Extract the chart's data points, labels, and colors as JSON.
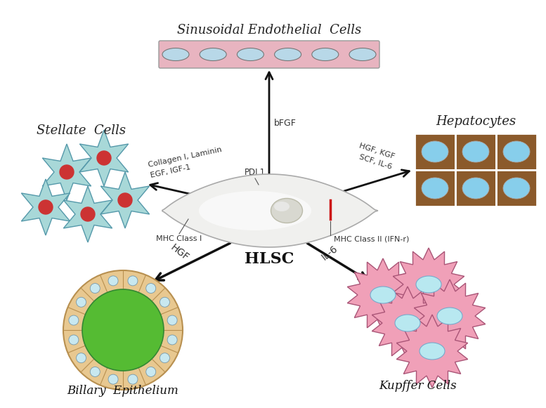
{
  "background_color": "#ffffff",
  "title_sinusoidal": "Sinusoidal Endothelial  Cells",
  "title_stellate": "Stellate  Cells",
  "title_hepatocytes": "Hepatocytes",
  "title_billary": "Billary  Epithelium",
  "title_kupffer": "Kupffer Cells",
  "title_hlsc": "HLSC",
  "label_bFGF": "bFGF",
  "label_HGF_KGF": "HGF, KGF",
  "label_SCF_IL6": "SCF, IL-6",
  "label_collagen": "Collagen I, Laminin",
  "label_EGF": "EGF, IGF-1",
  "label_PDL1": "PDL1",
  "label_MHC1": "MHC Class I",
  "label_MHC2": "MHC Class II (IFN-r)",
  "label_HGF_bottom": "HGF",
  "label_IL6_bottom": "IL-6",
  "sinusoidal_bar_color": "#e8b4c0",
  "sinusoidal_cell_color": "#b8d8e8",
  "stellate_color": "#a8d8d8",
  "stellate_edge": "#5599aa",
  "stellate_center_color": "#cc3333",
  "hepatocyte_bg": "#8b5a2b",
  "hepatocyte_cell": "#87ceeb",
  "billary_outer_color": "#e8c890",
  "billary_outer_edge": "#b89050",
  "billary_inner_color": "#55bb33",
  "billary_small_cell": "#c8e8f0",
  "billary_small_edge": "#7799aa",
  "kupffer_color": "#f0a0b8",
  "kupffer_edge": "#aa5577",
  "kupffer_center": "#b8e8f0",
  "arrow_color": "#111111",
  "mhc2_bar_color": "#cc1111"
}
